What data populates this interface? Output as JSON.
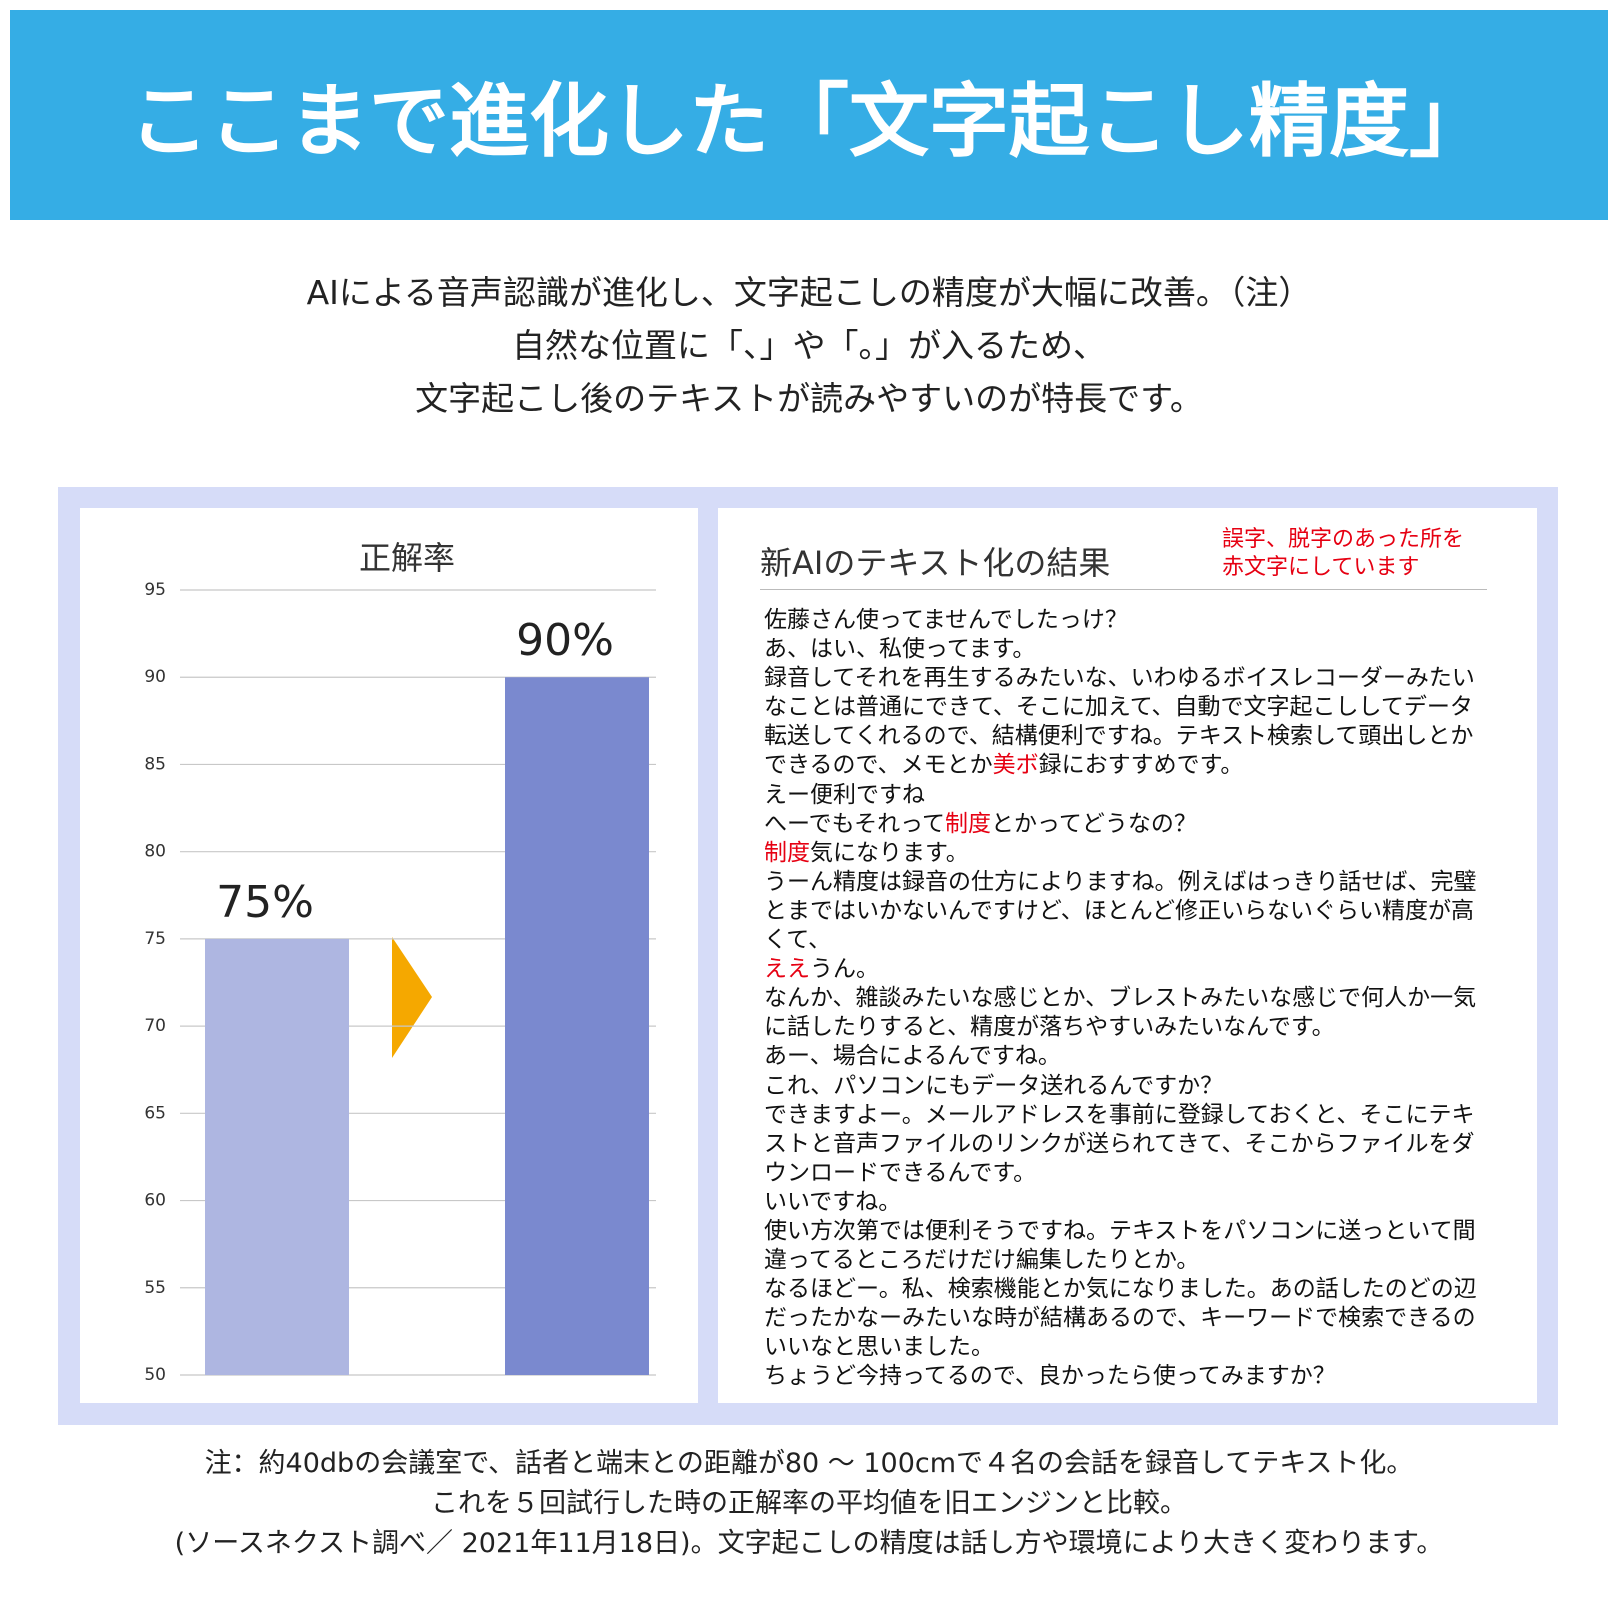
{
  "header": {
    "title": "ここまで進化した「文字起こし精度」"
  },
  "intro": [
    "AIによる音声認識が進化し、文字起こしの精度が大幅に改善。（注）",
    "自然な位置に「、」や「。」が入るため、",
    "文字起こし後のテキストが読みやすいのが特長です。"
  ],
  "chart_data": {
    "type": "bar",
    "title": "正解率",
    "categories": [
      null,
      null
    ],
    "values": [
      75,
      90
    ],
    "value_labels": [
      "75%",
      "90%"
    ],
    "colors": [
      "#aeb6e1",
      "#7a89cf"
    ],
    "ylim": [
      50,
      95
    ],
    "yticks": [
      50,
      55,
      60,
      65,
      70,
      75,
      80,
      85,
      90,
      95
    ],
    "grid": true
  },
  "transcript": {
    "title": "新AIのテキスト化の結果",
    "note": [
      "誤字、脱字のあった所を",
      "赤文字にしています"
    ],
    "note_color": "#e60012",
    "lines": [
      [
        "佐藤さん使ってませんでしたっけ？"
      ],
      [
        "あ、はい、私使ってます。"
      ],
      [
        "録音してそれを再生するみたいな、いわゆるボイスレコーダーみたいなことは普通にできて、そこに加えて、自動で文字起こししてデータ転送してくれるので、結構便利ですね。テキスト検索して頭出しとかできるので、メモとか",
        {
          "text": "美ボ",
          "color": "#e60012"
        },
        "録におすすめです。"
      ],
      [
        "えー便利ですね"
      ],
      [
        "へーでもそれって",
        {
          "text": "制度",
          "color": "#e60012"
        },
        "とかってどうなの？"
      ],
      [
        {
          "text": "制度",
          "color": "#e60012"
        },
        "気になります。"
      ],
      [
        "うーん精度は録音の仕方によりますね。例えばはっきり話せば、完璧とまではいかないんですけど、ほとんど修正いらないぐらい精度が高くて、"
      ],
      [
        {
          "text": "ええ",
          "color": "#e60012"
        },
        "うん。"
      ],
      [
        "なんか、雑談みたいな感じとか、ブレストみたいな感じで何人か一気に話したりすると、精度が落ちやすいみたいなんです。"
      ],
      [
        "あー、場合によるんですね。"
      ],
      [
        "これ、パソコンにもデータ送れるんですか？"
      ],
      [
        "できますよー。メールアドレスを事前に登録しておくと、そこにテキストと音声ファイルのリンクが送られてきて、そこからファイルをダウンロードできるんです。"
      ],
      [
        "いいですね。"
      ],
      [
        "使い方次第では便利そうですね。テキストをパソコンに送っといて間違ってるところだけだけ編集したりとか。"
      ],
      [
        "なるほどー。私、検索機能とか気になりました。あの話したのどの辺だったかなーみたいな時が結構あるので、キーワードで検索できるのいいなと思いました。"
      ],
      [
        "ちょうど今持ってるので、良かったら使ってみますか？"
      ]
    ]
  },
  "footnote": [
    "注：約40dbの会議室で、話者と端末との距離が80 ～ 100cmで４名の会話を録音してテキスト化。",
    "これを５回試行した時の正解率の平均値を旧エンジンと比較。",
    "(ソースネクスト調べ／ 2021年11月18日)。文字起こしの精度は話し方や環境により大きく変わります。"
  ]
}
